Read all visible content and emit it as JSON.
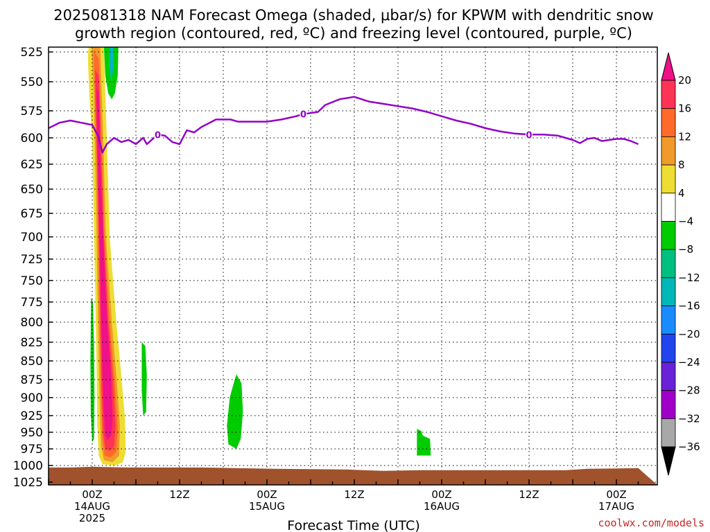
{
  "chart_data": {
    "type": "heatmap",
    "title_line1": "2025081318 NAM Forecast Omega (shaded, μbar/s) for KPWM with dendritic snow",
    "title_line2": "growth region (contoured, red, ºC) and freezing level (contoured, purple, ºC)",
    "xlabel": "Forecast Time (UTC)",
    "credit": "coolwx.com/models",
    "yscale": "pressure (hPa), inverted",
    "ylim": [
      1025,
      525
    ],
    "y_ticks": [
      "525",
      "550",
      "575",
      "600",
      "625",
      "650",
      "675",
      "700",
      "725",
      "750",
      "775",
      "800",
      "825",
      "850",
      "875",
      "900",
      "925",
      "950",
      "975",
      "1000",
      "1025"
    ],
    "x_range_hours": [
      -6,
      63
    ],
    "x_ticks": [
      {
        "hour": 0,
        "line1": "00Z",
        "line2": "14AUG",
        "line3": "2025"
      },
      {
        "hour": 12,
        "line1": "12Z",
        "line2": "",
        "line3": ""
      },
      {
        "hour": 24,
        "line1": "00Z",
        "line2": "15AUG",
        "line3": ""
      },
      {
        "hour": 36,
        "line1": "12Z",
        "line2": "",
        "line3": ""
      },
      {
        "hour": 48,
        "line1": "00Z",
        "line2": "16AUG",
        "line3": ""
      },
      {
        "hour": 60,
        "line1": "12Z",
        "line2": "",
        "line3": ""
      },
      {
        "hour": 72,
        "line1": "00Z",
        "line2": "17AUG",
        "line3": ""
      }
    ],
    "colorbar": {
      "tick_labels": [
        "20",
        "16",
        "12",
        "8",
        "4",
        "−4",
        "−8",
        "−12",
        "−16",
        "−20",
        "−24",
        "−28",
        "−32",
        "−36"
      ],
      "bands": [
        {
          "lo": 16,
          "hi": 20,
          "color": "#ff3355"
        },
        {
          "lo": 12,
          "hi": 16,
          "color": "#ff6a2a"
        },
        {
          "lo": 8,
          "hi": 12,
          "color": "#f09a2a"
        },
        {
          "lo": 4,
          "hi": 8,
          "color": "#eedd33"
        },
        {
          "lo": -4,
          "hi": 4,
          "color": "#ffffff"
        },
        {
          "lo": -8,
          "hi": -4,
          "color": "#00cc00"
        },
        {
          "lo": -12,
          "hi": -8,
          "color": "#00c080"
        },
        {
          "lo": -16,
          "hi": -12,
          "color": "#00b8b8"
        },
        {
          "lo": -20,
          "hi": -16,
          "color": "#1a8cff"
        },
        {
          "lo": -24,
          "hi": -20,
          "color": "#2244ee"
        },
        {
          "lo": -28,
          "hi": -24,
          "color": "#6a22d8"
        },
        {
          "lo": -32,
          "hi": -28,
          "color": "#a000c8"
        },
        {
          "lo": -36,
          "hi": -32,
          "color": "#a8a8a8"
        }
      ],
      "top_arrow_color": "#ee1188",
      "bottom_arrow_color": "#000000"
    },
    "omega_features": [
      {
        "name": "main rising column",
        "strongest": "> 20",
        "color": "#ee1188",
        "hours": [
          0.5,
          3.5
        ],
        "pressure": [
          525,
          985
        ]
      },
      {
        "name": "sinking area near 00Z 14AUG",
        "value_range": [
          -8,
          -4
        ],
        "hours": [
          -0.2,
          0.3
        ],
        "pressure": [
          770,
          965
        ]
      },
      {
        "name": "sinking area near 06Z 14AUG",
        "value_range": [
          -8,
          -4
        ],
        "hours": [
          6.8,
          7.5
        ],
        "pressure": [
          825,
          925
        ]
      },
      {
        "name": "sinking area near 21Z 14AUG",
        "value_range": [
          -8,
          -4
        ],
        "hours": [
          18.5,
          20.6
        ],
        "pressure": [
          870,
          975
        ]
      },
      {
        "name": "sinking area near 20Z 15AUG",
        "value_range": [
          -8,
          -4
        ],
        "hours": [
          44.5,
          46.5
        ],
        "pressure": [
          945,
          985
        ]
      },
      {
        "name": "upper sinking area near 02Z 14AUG",
        "value_range": [
          -16,
          -4
        ],
        "hours": [
          1.6,
          3.6
        ],
        "pressure": [
          525,
          565
        ]
      }
    ],
    "freezing_level": {
      "contour_value": "0",
      "hours": [
        -6,
        -4.5,
        -3,
        -1.5,
        0,
        0.8,
        1.4,
        2,
        3,
        4,
        5,
        6,
        7,
        7.5,
        9,
        10,
        11,
        12,
        13,
        14,
        15,
        17,
        19,
        20,
        22,
        24,
        26,
        28,
        29,
        31,
        32,
        34,
        36,
        38,
        40,
        42,
        44,
        46,
        48,
        50,
        52,
        54,
        56,
        58,
        60,
        62,
        64,
        66,
        67,
        68,
        69,
        70,
        71,
        72,
        73,
        74,
        75
      ],
      "pressure": [
        591,
        586,
        584,
        586,
        588,
        598,
        614,
        606,
        600,
        604,
        602,
        606,
        600,
        606,
        597,
        598,
        604,
        606,
        593,
        595,
        590,
        583,
        583,
        585,
        585,
        585,
        583,
        580,
        578,
        576,
        570,
        565,
        563,
        567,
        569,
        571,
        573,
        576,
        580,
        584,
        587,
        591,
        594,
        596,
        597,
        597,
        598,
        602,
        605,
        601,
        600,
        603,
        602,
        601,
        601,
        603,
        606
      ],
      "label_hours": [
        9,
        29,
        60
      ]
    },
    "terrain": {
      "color": "#a0522d",
      "pressure_range": [
        1003,
        1008
      ]
    }
  }
}
